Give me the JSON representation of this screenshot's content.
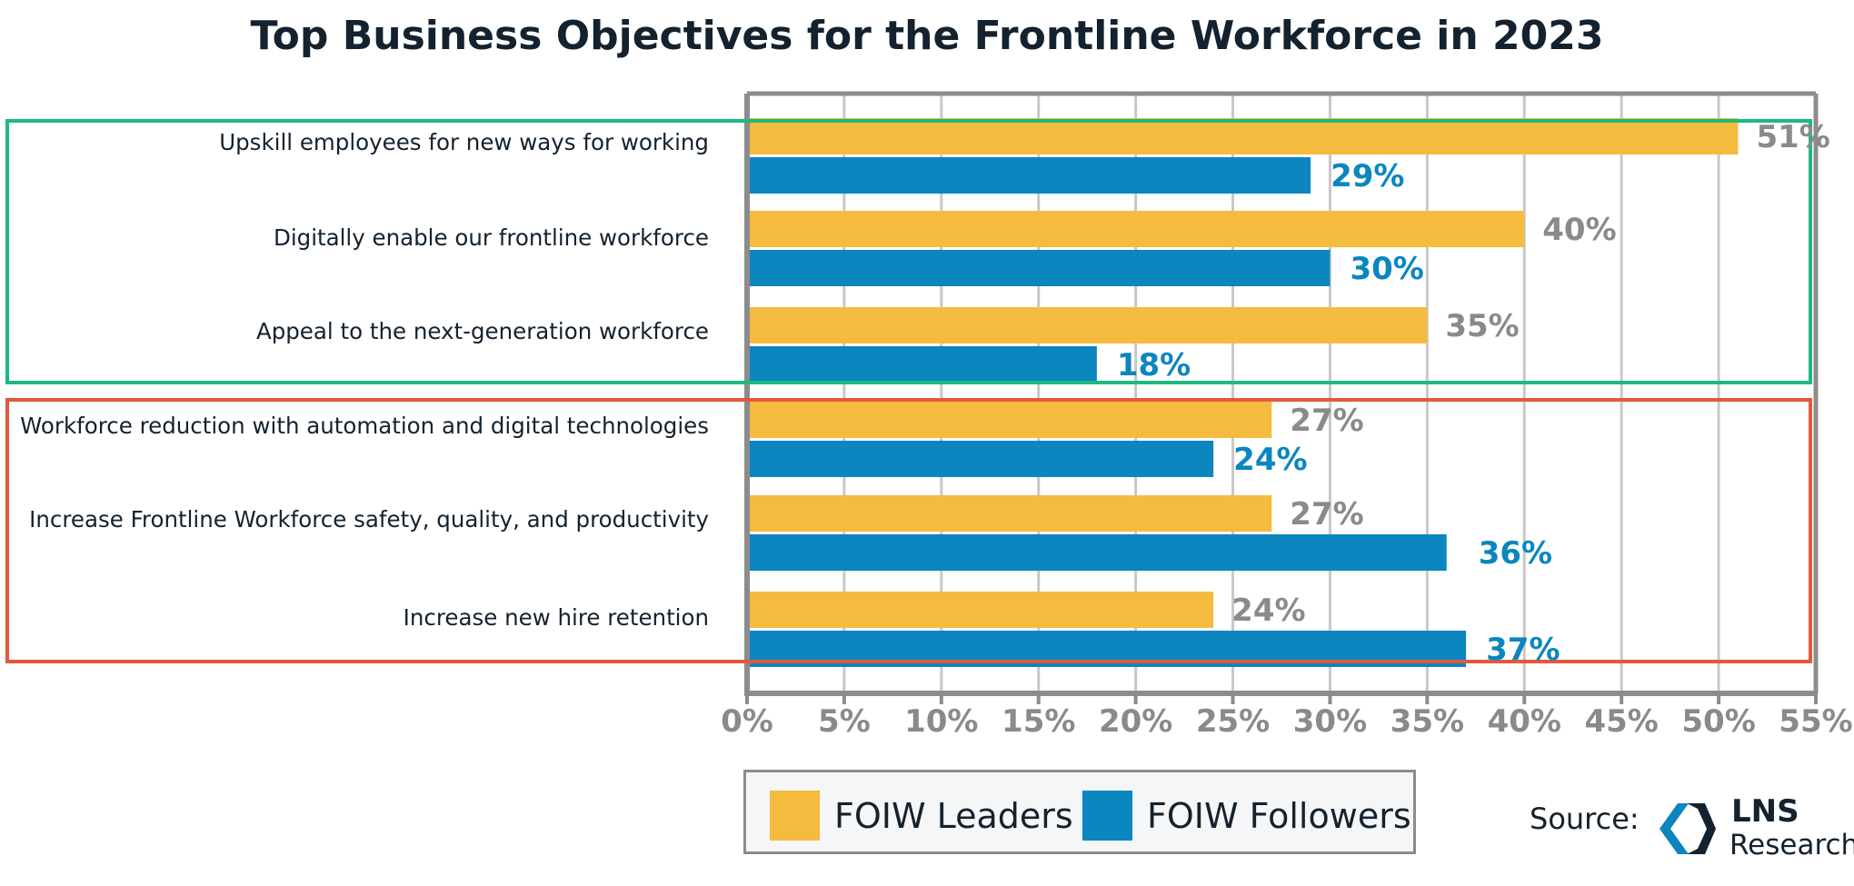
{
  "chart_data": {
    "type": "bar",
    "orientation": "horizontal",
    "title": "Top Business Objectives for the Frontline Workforce in 2023",
    "categories": [
      "Upskill employees for new ways for working",
      "Digitally enable our frontline workforce",
      "Appeal to the next-generation workforce",
      "Workforce reduction with automation and digital technologies",
      "Increase Frontline Workforce safety, quality, and productivity",
      "Increase new hire retention"
    ],
    "series": [
      {
        "name": "FOIW Leaders",
        "color": "#f4bb3f",
        "values": [
          51,
          40,
          35,
          27,
          27,
          24
        ],
        "labels": [
          "51%",
          "40%",
          "35%",
          "27%",
          "27%",
          "24%"
        ]
      },
      {
        "name": "FOIW Followers",
        "color": "#0b86bf",
        "values": [
          29,
          30,
          18,
          24,
          36,
          37
        ],
        "labels": [
          "29%",
          "30%",
          "18%",
          "24%",
          "36%",
          "37%"
        ]
      }
    ],
    "xlim": [
      0,
      55
    ],
    "ticks": [
      0,
      5,
      10,
      15,
      20,
      25,
      30,
      35,
      40,
      45,
      50,
      55
    ],
    "tick_labels": [
      "0%",
      "5%",
      "10%",
      "15%",
      "20%",
      "25%",
      "30%",
      "35%",
      "40%",
      "45%",
      "50%",
      "55%"
    ],
    "grid": true,
    "legend_position": "bottom-center",
    "group_highlights": [
      {
        "categories": [
          0,
          1,
          2
        ],
        "color": "#1db980"
      },
      {
        "categories": [
          3,
          4,
          5
        ],
        "color": "#e2583e"
      }
    ]
  },
  "legend": {
    "leaders_label": "FOIW Leaders",
    "followers_label": "FOIW Followers"
  },
  "source": {
    "label": "Source:",
    "brand_name": "LNS",
    "brand_sub": "Research"
  }
}
